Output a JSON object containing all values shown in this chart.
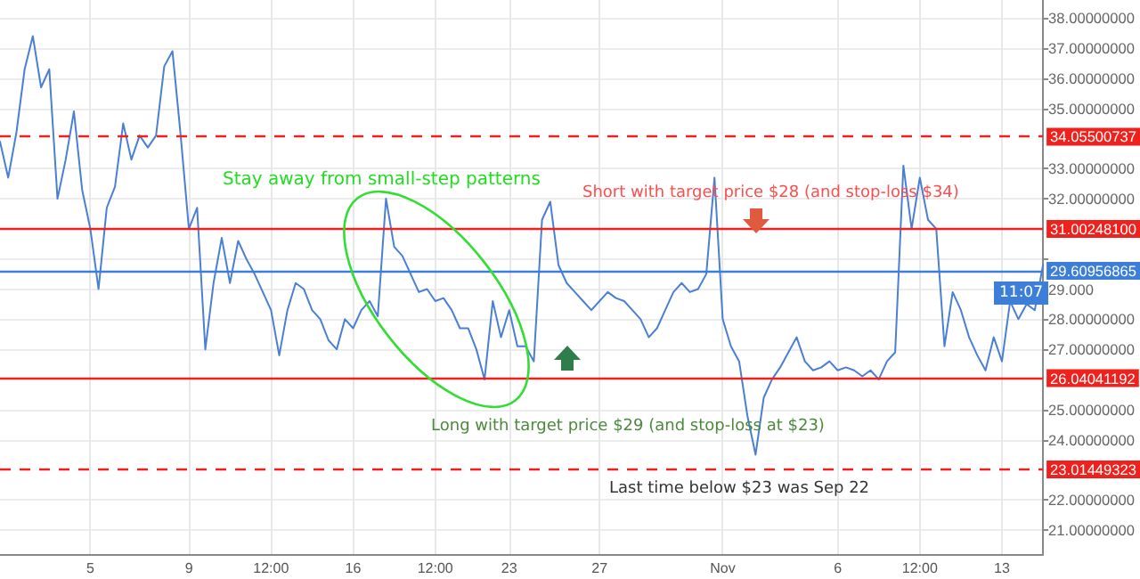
{
  "chart_data": {
    "type": "line",
    "categories": [
      null,
      null,
      null,
      null,
      null,
      null,
      null,
      null,
      null,
      null,
      null,
      "5",
      null,
      null,
      null,
      null,
      null,
      null,
      null,
      null,
      null,
      null,
      null,
      "9",
      null,
      null,
      null,
      null,
      null,
      null,
      null,
      null,
      null,
      "12:00",
      null,
      null,
      null,
      null,
      null,
      null,
      null,
      null,
      null,
      "16",
      null,
      null,
      null,
      null,
      null,
      null,
      null,
      null,
      null,
      "12:00",
      null,
      null,
      null,
      null,
      null,
      null,
      null,
      null,
      "23",
      null,
      null,
      null,
      null,
      null,
      null,
      null,
      null,
      null,
      null,
      "27",
      null,
      null,
      null,
      null,
      null,
      null,
      null,
      null,
      null,
      null,
      null,
      null,
      null,
      null,
      "Nov",
      null,
      null,
      null,
      null,
      null,
      null,
      null,
      null,
      null,
      null,
      null,
      null,
      null,
      "6",
      null,
      null,
      null,
      null,
      null,
      null,
      null,
      null,
      null,
      "12:00",
      null,
      null,
      null,
      null,
      null,
      null,
      null,
      null,
      null,
      "13",
      null,
      null,
      null,
      null,
      null
    ],
    "series": [
      {
        "color": "#4a7fd4",
        "values": [
          33.9,
          32.7,
          34.2,
          36.3,
          37.4,
          35.7,
          36.3,
          32.0,
          33.3,
          34.9,
          32.3,
          31.0,
          29.0,
          31.7,
          32.4,
          34.5,
          33.3,
          34.1,
          33.7,
          34.1,
          36.4,
          36.9,
          34.1,
          31.0,
          31.7,
          27.0,
          29.2,
          30.7,
          29.2,
          30.6,
          30.0,
          29.5,
          28.9,
          28.3,
          26.8,
          28.3,
          29.2,
          29.0,
          28.3,
          28.0,
          27.3,
          27.0,
          28.0,
          27.7,
          28.3,
          28.6,
          28.1,
          32.0,
          30.4,
          30.1,
          29.5,
          28.9,
          29.0,
          28.6,
          28.7,
          28.3,
          27.7,
          27.7,
          27.0,
          26.0,
          28.6,
          27.4,
          28.3,
          27.1,
          27.1,
          26.6,
          31.3,
          31.9,
          29.8,
          29.2,
          28.9,
          28.6,
          28.3,
          28.6,
          28.9,
          28.7,
          28.6,
          28.3,
          28.0,
          27.4,
          27.7,
          28.3,
          28.9,
          29.2,
          28.9,
          29.0,
          29.5,
          32.7,
          28.0,
          27.1,
          26.6,
          24.8,
          23.5,
          25.4,
          26.0,
          26.4,
          26.9,
          27.4,
          26.6,
          26.3,
          26.4,
          26.6,
          26.3,
          26.4,
          26.3,
          26.1,
          26.3,
          26.0,
          26.6,
          26.9,
          33.1,
          31.0,
          32.7,
          31.3,
          31.0,
          27.1,
          28.9,
          28.3,
          27.4,
          26.8,
          26.3,
          27.4,
          26.6,
          28.6,
          28.0,
          28.5,
          28.3,
          29.8
        ]
      }
    ],
    "ylim": [
      20.2,
      38.6
    ],
    "yticks": [
      {
        "value": 21,
        "label": "21.00000000"
      },
      {
        "value": 22,
        "label": "22.00000000"
      },
      {
        "value": 24,
        "label": "24.00000000"
      },
      {
        "value": 25,
        "label": "25.00000000"
      },
      {
        "value": 27,
        "label": "27.00000000"
      },
      {
        "value": 28,
        "label": "28.00000000"
      },
      {
        "value": 29,
        "label": "29.000"
      },
      {
        "value": 30,
        "label": null
      },
      {
        "value": 32,
        "label": "32.00000000"
      },
      {
        "value": 33,
        "label": "33.00000000"
      },
      {
        "value": 35,
        "label": "35.00000000"
      },
      {
        "value": 36,
        "label": "36.00000000"
      },
      {
        "value": 37,
        "label": "37.00000000"
      },
      {
        "value": 38,
        "label": "38.00000000"
      }
    ],
    "ref_lines": [
      {
        "axis": "y",
        "value": 34.05500737,
        "label": "34.05500737",
        "color": "#f0201c",
        "line_style": "dashed"
      },
      {
        "axis": "y",
        "value": 31.002481,
        "label": "31.00248100",
        "color": "#f0201c",
        "line_style": "solid"
      },
      {
        "axis": "y",
        "value": 29.60956865,
        "label": "29.60956865",
        "color": "#3d7fd8",
        "line_style": "solid"
      },
      {
        "axis": "y",
        "value": 26.04041192,
        "label": "26.04041192",
        "color": "#f0201c",
        "line_style": "solid"
      },
      {
        "axis": "y",
        "value": 23.01449323,
        "label": "23.01449323",
        "color": "#f0201c",
        "line_style": "dashed"
      }
    ],
    "annotations": [
      "Stay away from small-step patterns",
      "Short with target price $28 (and stop-loss $34)",
      "Long with target price $29 (and stop-loss at $23)",
      "Last time below $23 was Sep 22",
      "11:07"
    ],
    "grid": true,
    "marker": "none",
    "line_style": "solid"
  }
}
